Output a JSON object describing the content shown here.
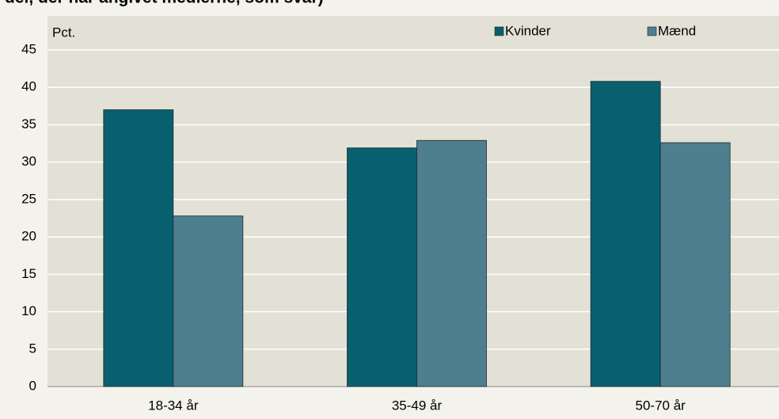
{
  "chart_data": {
    "type": "bar",
    "title": "del, der har angivet medierne, som svar)",
    "y_label": "Pct.",
    "categories": [
      "18-34 år",
      "35-49 år",
      "50-70 år"
    ],
    "series": [
      {
        "name": "Kvinder",
        "color": "#08606e",
        "values": [
          37,
          31.9,
          40.8
        ]
      },
      {
        "name": "Mænd",
        "color": "#4e7f8e",
        "values": [
          22.8,
          32.9,
          32.6
        ]
      }
    ],
    "ylim": [
      0,
      45
    ],
    "yticks": [
      0,
      5,
      10,
      15,
      20,
      25,
      30,
      35,
      40,
      45
    ],
    "grid": true,
    "legend": "top-right"
  }
}
